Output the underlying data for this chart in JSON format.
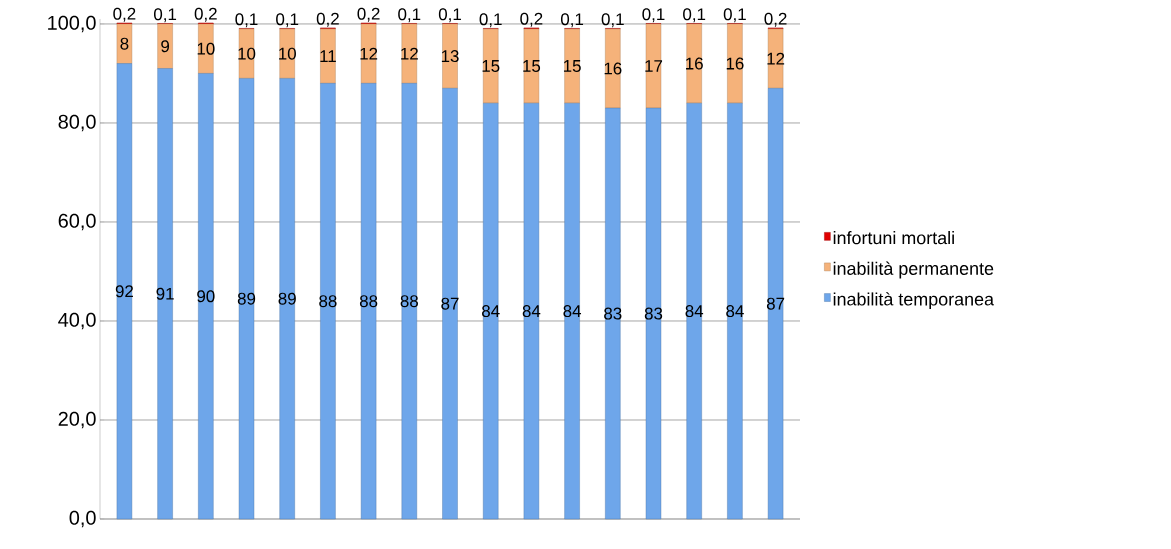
{
  "chart_data": {
    "type": "bar",
    "stacked": true,
    "categories": [
      null,
      null,
      null,
      null,
      null,
      null,
      null,
      null,
      null,
      null,
      null,
      null,
      null,
      null,
      null,
      null,
      null
    ],
    "series": [
      {
        "name": "inabilità temporanea",
        "color": "#6ea6ea",
        "values": [
          92,
          91,
          90,
          89,
          89,
          88,
          88,
          88,
          87,
          84,
          84,
          84,
          83,
          83,
          84,
          84,
          87
        ],
        "value_labels": [
          "92",
          "91",
          "90",
          "89",
          "89",
          "88",
          "88",
          "88",
          "87",
          "84",
          "84",
          "84",
          "83",
          "83",
          "84",
          "84",
          "87"
        ]
      },
      {
        "name": "inabilità permanente",
        "color": "#f5b27a",
        "values": [
          8,
          9,
          10,
          10,
          10,
          11,
          12,
          12,
          13,
          15,
          15,
          15,
          16,
          17,
          16,
          16,
          12
        ],
        "value_labels": [
          "8",
          "9",
          "10",
          "10",
          "10",
          "11",
          "12",
          "12",
          "13",
          "15",
          "15",
          "15",
          "16",
          "17",
          "16",
          "16",
          "12"
        ]
      },
      {
        "name": "infortuni mortali",
        "color": "#e00000",
        "values": [
          0.2,
          0.1,
          0.2,
          0.1,
          0.1,
          0.2,
          0.2,
          0.1,
          0.1,
          0.1,
          0.2,
          0.1,
          0.1,
          0.1,
          0.1,
          0.1,
          0.2
        ],
        "value_labels": [
          "0,2",
          "0,1",
          "0,2",
          "0,1",
          "0,1",
          "0,2",
          "0,2",
          "0,1",
          "0,1",
          "0,1",
          "0,2",
          "0,1",
          "0,1",
          "0,1",
          "0,1",
          "0,1",
          "0,2"
        ]
      }
    ],
    "ylim": [
      0,
      101
    ],
    "yticks": [
      {
        "value": 0,
        "label": "0,0"
      },
      {
        "value": 20,
        "label": "20,0"
      },
      {
        "value": 40,
        "label": "40,0"
      },
      {
        "value": 60,
        "label": "60,0"
      },
      {
        "value": 80,
        "label": "80,0"
      },
      {
        "value": 100,
        "label": "100,0"
      }
    ],
    "grid": "y",
    "legend": "right"
  }
}
